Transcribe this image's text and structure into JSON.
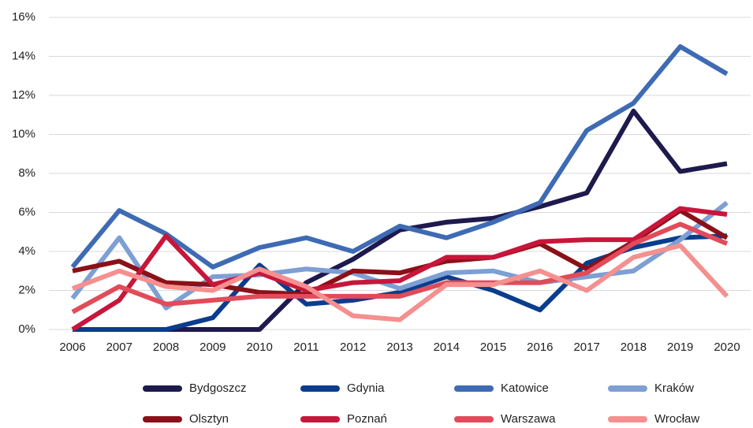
{
  "chart_data": {
    "type": "line",
    "x": [
      2006,
      2007,
      2008,
      2009,
      2010,
      2011,
      2012,
      2013,
      2014,
      2015,
      2016,
      2017,
      2018,
      2019,
      2020
    ],
    "ylim": [
      0,
      16
    ],
    "yticks": [
      {
        "value": 0,
        "label": "0%"
      },
      {
        "value": 2,
        "label": "2%"
      },
      {
        "value": 4,
        "label": "4%"
      },
      {
        "value": 6,
        "label": "6%"
      },
      {
        "value": 8,
        "label": "8%"
      },
      {
        "value": 10,
        "label": "10%"
      },
      {
        "value": 12,
        "label": "12%"
      },
      {
        "value": 14,
        "label": "14%"
      },
      {
        "value": 16,
        "label": "16%"
      }
    ],
    "grid": true,
    "legend": "bottom",
    "series": [
      {
        "name": "Bydgoszcz",
        "color": "#1e1a4d",
        "values": [
          0,
          0,
          0,
          0,
          0,
          2.4,
          3.6,
          5.1,
          5.5,
          5.7,
          6.3,
          7.0,
          11.2,
          8.1,
          8.5
        ]
      },
      {
        "name": "Gdynia",
        "color": "#0a3d8c",
        "values": [
          0,
          0,
          0,
          0.6,
          3.3,
          1.3,
          1.5,
          1.9,
          2.7,
          2.0,
          1.0,
          3.4,
          4.2,
          4.7,
          4.8
        ]
      },
      {
        "name": "Katowice",
        "color": "#3e6bb4",
        "values": [
          3.2,
          6.1,
          4.9,
          3.2,
          4.2,
          4.7,
          4.0,
          5.3,
          4.7,
          5.5,
          6.5,
          10.2,
          11.6,
          14.5,
          13.1
        ]
      },
      {
        "name": "Kraków",
        "color": "#7d9fd4",
        "values": [
          1.6,
          4.7,
          1.1,
          2.7,
          2.8,
          3.1,
          2.9,
          2.1,
          2.9,
          3.0,
          2.4,
          2.7,
          3.0,
          4.6,
          6.5
        ]
      },
      {
        "name": "Olsztyn",
        "color": "#8b1018",
        "values": [
          3.0,
          3.5,
          2.4,
          2.3,
          1.9,
          1.8,
          3.0,
          2.9,
          3.5,
          3.7,
          4.4,
          3.1,
          4.5,
          6.1,
          4.7
        ]
      },
      {
        "name": "Poznań",
        "color": "#c8163b",
        "values": [
          0,
          1.5,
          4.8,
          2.3,
          2.9,
          2.0,
          2.4,
          2.5,
          3.7,
          3.7,
          4.5,
          4.6,
          4.6,
          6.2,
          5.9
        ]
      },
      {
        "name": "Warszawa",
        "color": "#e14b5a",
        "values": [
          0.9,
          2.2,
          1.3,
          1.5,
          1.7,
          1.7,
          1.7,
          1.7,
          2.4,
          2.4,
          2.4,
          2.9,
          4.4,
          5.4,
          4.4
        ]
      },
      {
        "name": "Wrocław",
        "color": "#f4908f",
        "values": [
          2.1,
          3.0,
          2.2,
          2.0,
          3.1,
          2.2,
          0.7,
          0.5,
          2.3,
          2.3,
          3.0,
          2.0,
          3.7,
          4.3,
          1.7
        ]
      }
    ]
  }
}
